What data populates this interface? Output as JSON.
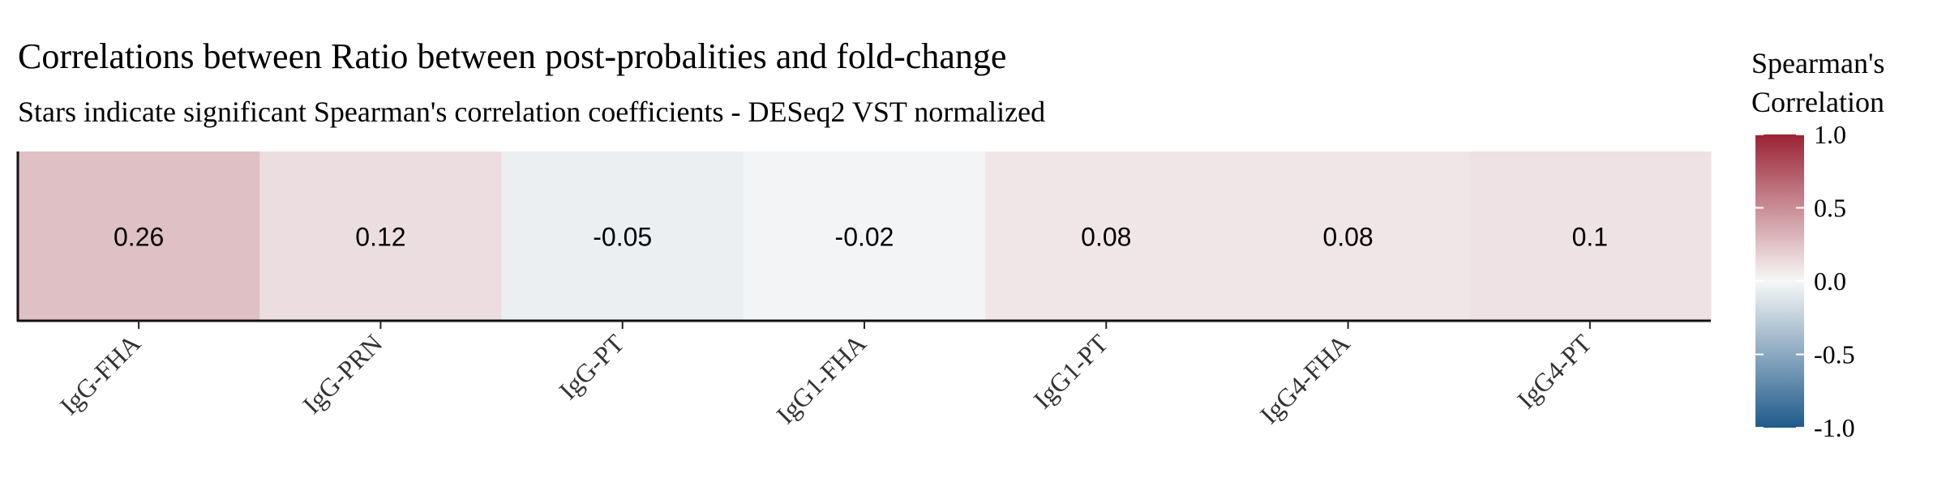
{
  "chart_data": {
    "type": "heatmap",
    "title": "Correlations between Ratio between post-probalities and fold-change",
    "subtitle": "Stars indicate significant Spearman's correlation coefficients - DESeq2 VST normalized",
    "categories": [
      "IgG-FHA",
      "IgG-PRN",
      "IgG-PT",
      "IgG1-FHA",
      "IgG1-PT",
      "IgG4-FHA",
      "IgG4-PT"
    ],
    "values": [
      0.26,
      0.12,
      -0.05,
      -0.02,
      0.08,
      0.08,
      0.1
    ],
    "value_labels": [
      "0.26",
      "0.12",
      "-0.05",
      "-0.02",
      "0.08",
      "0.08",
      "0.1"
    ],
    "legend": {
      "title_lines": [
        "Spearman's",
        "Correlation"
      ],
      "ticks": [
        1.0,
        0.5,
        0.0,
        -0.5,
        -1.0
      ],
      "tick_labels": [
        "1.0",
        "0.5",
        "0.0",
        "-0.5",
        "-1.0"
      ],
      "range": [
        -1.0,
        1.0
      ],
      "position": "right"
    },
    "colors": {
      "high": "#9B2335",
      "mid": "#F7F7F7",
      "low": "#1F5A8A"
    },
    "grid": false
  }
}
